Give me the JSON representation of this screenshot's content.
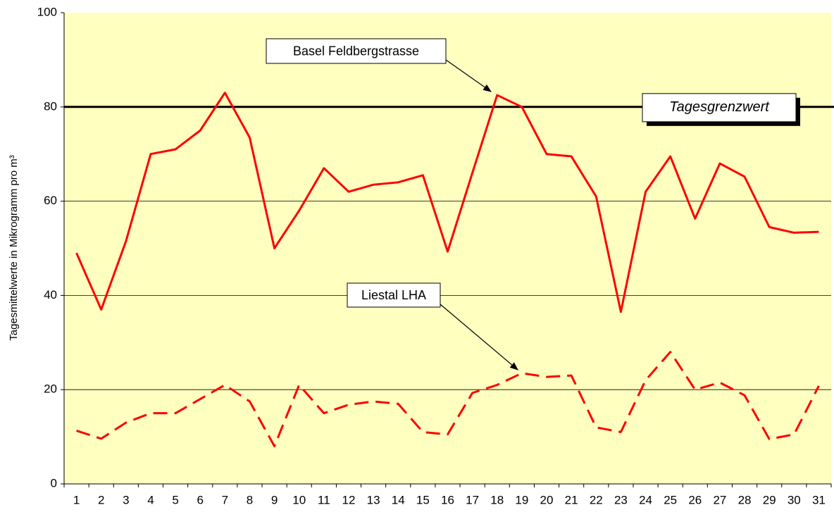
{
  "chart_data": {
    "type": "line",
    "y_label": "Tagesmittelwerte in Mikrogramm pro m³",
    "categories": [
      "1",
      "2",
      "3",
      "4",
      "5",
      "6",
      "7",
      "8",
      "9",
      "10",
      "11",
      "12",
      "13",
      "14",
      "15",
      "16",
      "17",
      "18",
      "19",
      "20",
      "21",
      "22",
      "23",
      "24",
      "25",
      "26",
      "27",
      "28",
      "29",
      "30",
      "31"
    ],
    "series": [
      {
        "name": "Basel Feldbergstrasse",
        "color": "#ff0000",
        "dash": false,
        "values": [
          49,
          37,
          51.5,
          70,
          71,
          75,
          83,
          73.5,
          50,
          58,
          67,
          62,
          63.5,
          64,
          65.5,
          49.3,
          66,
          82.5,
          80,
          70,
          69.5,
          61,
          36.5,
          62,
          69.5,
          56.3,
          68,
          65.2,
          54.5,
          53.3,
          53.5
        ]
      },
      {
        "name": "Liestal LHA",
        "color": "#ff0000",
        "dash": true,
        "values": [
          11.3,
          9.6,
          13,
          15,
          15,
          18,
          21,
          17.5,
          8,
          21,
          15,
          16.8,
          17.5,
          17,
          11,
          10.5,
          19.3,
          21,
          23.5,
          22.7,
          23,
          12,
          11,
          22,
          28,
          20,
          21.5,
          18.8,
          9.5,
          10.5,
          20.8
        ]
      }
    ],
    "reference_line": {
      "label": "Tagesgrenzwert",
      "value": 80,
      "color": "#000000"
    },
    "ylim": [
      0,
      100
    ],
    "yticks": [
      0,
      20,
      40,
      60,
      80,
      100
    ],
    "grid": true
  }
}
